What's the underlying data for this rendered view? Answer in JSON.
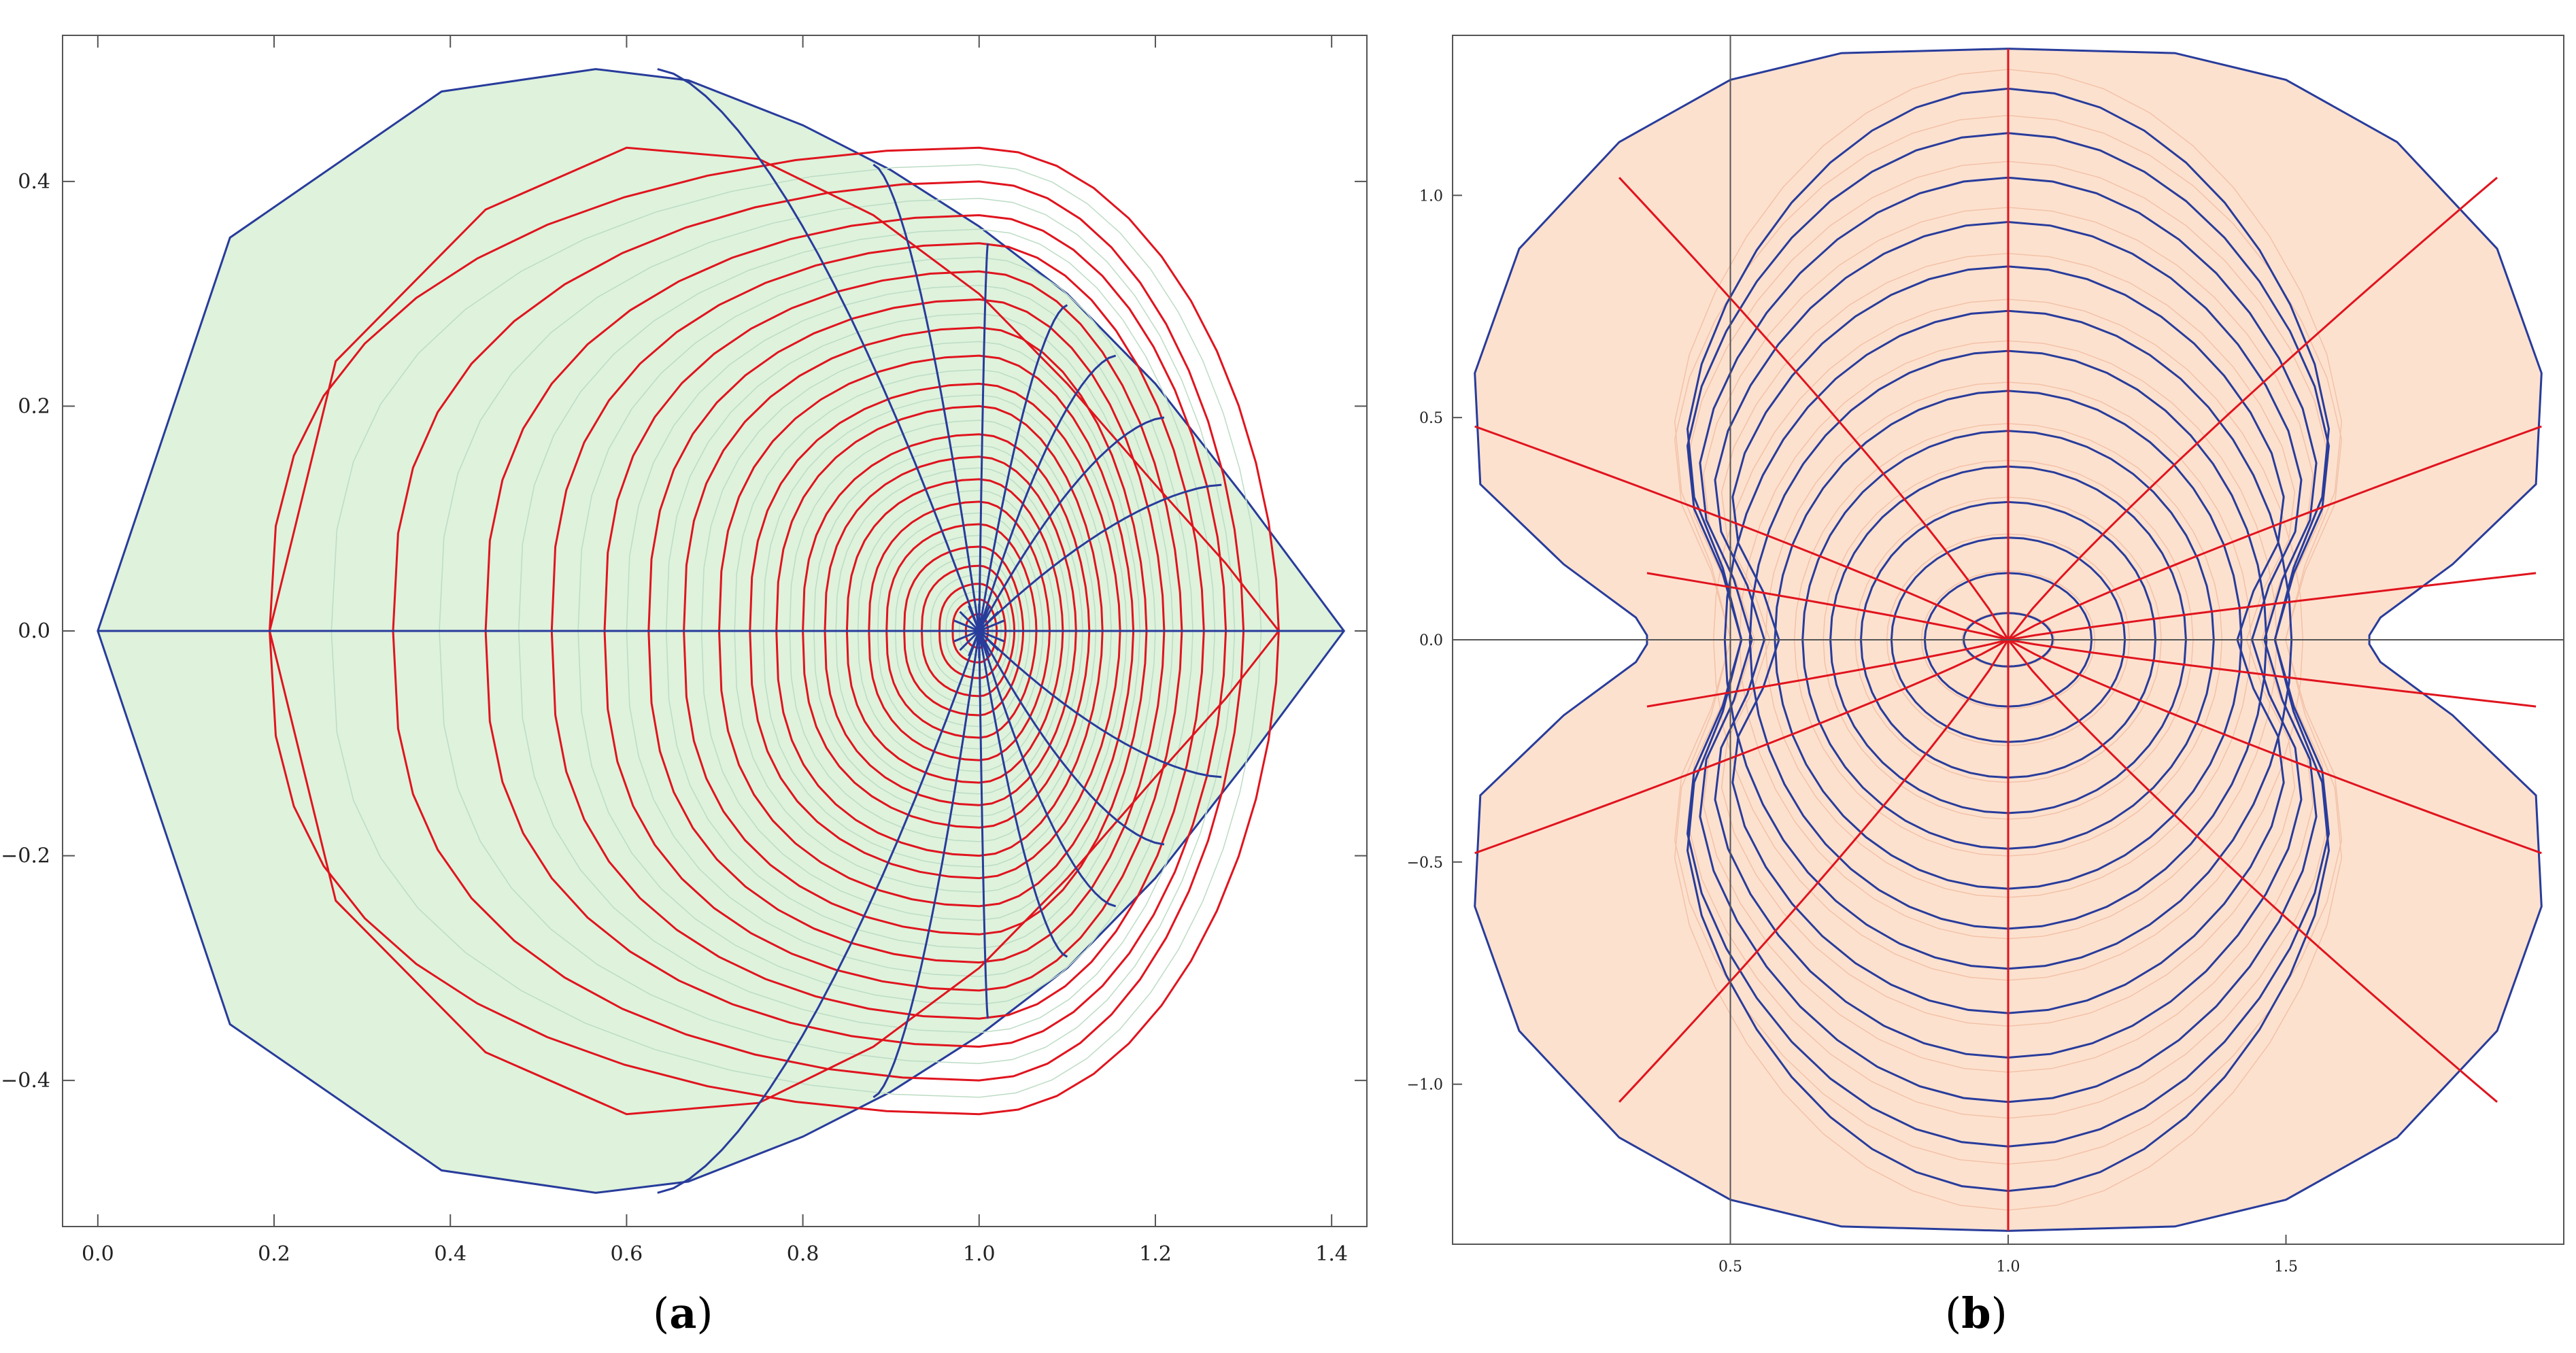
{
  "captions": {
    "a": "(a)",
    "b": "(b)"
  },
  "colors": {
    "panel_a_fill": "#def2dc",
    "panel_b_fill": "#fde1cf",
    "curve_red": "#e0141e",
    "curve_blue": "#283c9b",
    "faint_grid_a": "#bcdcc4",
    "faint_grid_b": "#f2c2a8",
    "axis": "#555555"
  },
  "chart_data": [
    {
      "panel": "a",
      "type": "line",
      "title": "",
      "xlabel": "",
      "ylabel": "",
      "xlim": [
        -0.04,
        1.44
      ],
      "ylim": [
        -0.53,
        0.53
      ],
      "x_ticks": [
        "0.0",
        "0.2",
        "0.4",
        "0.6",
        "0.8",
        "1.0",
        "1.2",
        "1.4"
      ],
      "y_ticks": [
        "-0.4",
        "-0.2",
        "0.0",
        "0.2",
        "0.4"
      ],
      "grid": false,
      "legend": "none",
      "description_of_marks": "coordinate-grid image: red closed contours around (1,0), blue radial curves from (1,0), boundary teardrop",
      "boundary_upper": [
        [
          0,
          0
        ],
        [
          0.15,
          0.35
        ],
        [
          0.39,
          0.48
        ],
        [
          0.565,
          0.5
        ],
        [
          0.67,
          0.49
        ],
        [
          0.8,
          0.45
        ],
        [
          0.9,
          0.41
        ],
        [
          1.0,
          0.36
        ],
        [
          1.1,
          0.3
        ],
        [
          1.2,
          0.22
        ],
        [
          1.3,
          0.12
        ],
        [
          1.414,
          0
        ]
      ],
      "red_contours": {
        "left_intercepts": [
          0.195,
          0.335,
          0.44,
          0.515,
          0.575,
          0.625,
          0.665,
          0.705,
          0.74,
          0.77,
          0.8,
          0.825,
          0.85,
          0.875,
          0.895,
          0.915,
          0.935,
          0.955,
          0.97,
          0.985
        ],
        "right_intercepts": [
          1.34,
          1.3,
          1.28,
          1.255,
          1.23,
          1.21,
          1.19,
          1.175,
          1.16,
          1.14,
          1.125,
          1.11,
          1.095,
          1.08,
          1.065,
          1.05,
          1.04,
          1.03,
          1.02,
          1.01
        ],
        "top_heights": [
          0.43,
          0.4,
          0.37,
          0.345,
          0.32,
          0.295,
          0.27,
          0.245,
          0.22,
          0.2,
          0.175,
          0.155,
          0.135,
          0.115,
          0.095,
          0.075,
          0.058,
          0.042,
          0.028,
          0.015
        ]
      },
      "blue_radials_endpoints": [
        [
          0.635,
          0.5
        ],
        [
          0.88,
          0.415
        ],
        [
          1.01,
          0.345
        ],
        [
          1.1,
          0.29
        ],
        [
          1.155,
          0.245
        ],
        [
          1.21,
          0.19
        ],
        [
          1.275,
          0.13
        ],
        [
          1.414,
          0
        ],
        [
          0.635,
          -0.5
        ],
        [
          0.88,
          -0.415
        ],
        [
          1.01,
          -0.345
        ],
        [
          1.1,
          -0.29
        ],
        [
          1.155,
          -0.245
        ],
        [
          1.21,
          -0.19
        ],
        [
          1.275,
          -0.13
        ],
        [
          0,
          0
        ]
      ]
    },
    {
      "panel": "b",
      "type": "line",
      "title": "",
      "xlabel": "",
      "ylabel": "",
      "xlim": [
        0.0,
        2.0
      ],
      "ylim": [
        -1.36,
        1.36
      ],
      "x_ticks": [
        "0.5",
        "1.0",
        "1.5"
      ],
      "y_ticks": [
        "-1.0",
        "-0.5",
        "0.0",
        "0.5",
        "1.0"
      ],
      "grid": false,
      "legend": "none",
      "axis_lines": {
        "x": 0.0,
        "y": 0.5
      },
      "description_of_marks": "coordinate-grid image: blue closed contours around (1,0), red radial curves from (1,0), peanut-shaped boundary",
      "boundary_upper": [
        [
          0.35,
          0.01
        ],
        [
          0.33,
          0.05
        ],
        [
          0.2,
          0.17
        ],
        [
          0.05,
          0.35
        ],
        [
          0.04,
          0.6
        ],
        [
          0.12,
          0.88
        ],
        [
          0.3,
          1.12
        ],
        [
          0.5,
          1.26
        ],
        [
          0.7,
          1.32
        ],
        [
          1.0,
          1.33
        ],
        [
          1.3,
          1.32
        ],
        [
          1.5,
          1.26
        ],
        [
          1.7,
          1.12
        ],
        [
          1.88,
          0.88
        ],
        [
          1.96,
          0.6
        ],
        [
          1.95,
          0.35
        ],
        [
          1.8,
          0.17
        ],
        [
          1.67,
          0.05
        ],
        [
          1.65,
          0.01
        ]
      ],
      "blue_contours": {
        "half_widths": [
          0.08,
          0.15,
          0.21,
          0.265,
          0.32,
          0.37,
          0.42,
          0.465,
          0.51,
          0.55,
          0.585,
          0.615
        ],
        "half_heights": [
          0.06,
          0.15,
          0.23,
          0.31,
          0.39,
          0.47,
          0.56,
          0.65,
          0.74,
          0.84,
          0.94,
          1.04,
          1.14,
          1.24
        ]
      },
      "red_radials_endpoints": [
        [
          1.0,
          1.33
        ],
        [
          1.88,
          1.04
        ],
        [
          1.96,
          0.48
        ],
        [
          1.95,
          0.15
        ],
        [
          1.0,
          -1.33
        ],
        [
          1.88,
          -1.04
        ],
        [
          1.96,
          -0.48
        ],
        [
          1.95,
          -0.15
        ],
        [
          0.3,
          1.04
        ],
        [
          0.04,
          0.48
        ],
        [
          0.35,
          0.15
        ],
        [
          0.3,
          -1.04
        ],
        [
          0.04,
          -0.48
        ],
        [
          0.35,
          -0.15
        ]
      ]
    }
  ]
}
